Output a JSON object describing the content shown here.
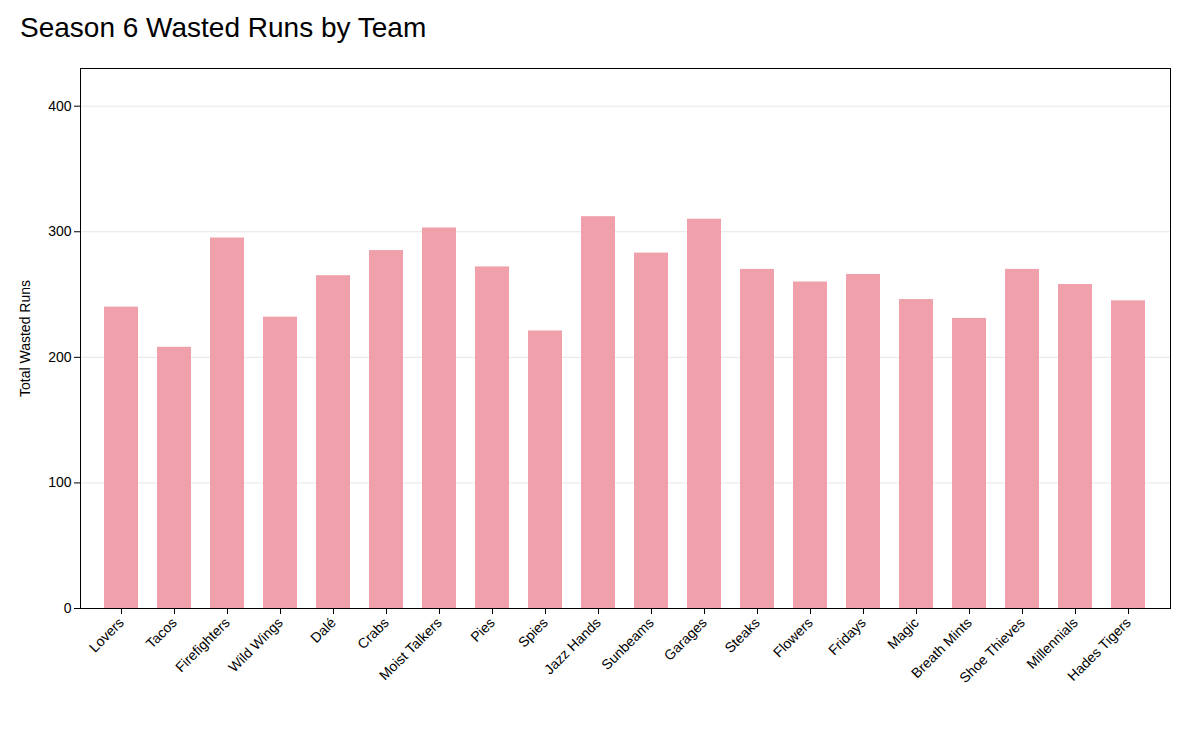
{
  "chart_data": {
    "type": "bar",
    "title": "Season 6 Wasted Runs by Team",
    "ylabel": "Total Wasted Runs",
    "categories": [
      "Lovers",
      "Tacos",
      "Firefighters",
      "Wild Wings",
      "Dalé",
      "Crabs",
      "Moist Talkers",
      "Pies",
      "Spies",
      "Jazz Hands",
      "Sunbeams",
      "Garages",
      "Steaks",
      "Flowers",
      "Fridays",
      "Magic",
      "Breath Mints",
      "Shoe Thieves",
      "Millennials",
      "Hades Tigers"
    ],
    "values": [
      240,
      208,
      295,
      232,
      265,
      285,
      303,
      272,
      221,
      312,
      283,
      310,
      270,
      260,
      266,
      246,
      231,
      270,
      258,
      245
    ],
    "color": "#f0a0aa",
    "ylim": [
      0,
      430
    ],
    "yticks": [
      0,
      100,
      200,
      300,
      400
    ],
    "grid": true
  }
}
